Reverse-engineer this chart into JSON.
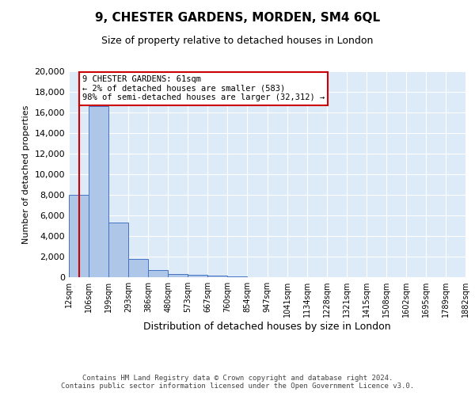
{
  "title": "9, CHESTER GARDENS, MORDEN, SM4 6QL",
  "subtitle": "Size of property relative to detached houses in London",
  "xlabel": "Distribution of detached houses by size in London",
  "ylabel": "Number of detached properties",
  "bin_labels": [
    "12sqm",
    "106sqm",
    "199sqm",
    "293sqm",
    "386sqm",
    "480sqm",
    "573sqm",
    "667sqm",
    "760sqm",
    "854sqm",
    "947sqm",
    "1041sqm",
    "1134sqm",
    "1228sqm",
    "1321sqm",
    "1415sqm",
    "1508sqm",
    "1602sqm",
    "1695sqm",
    "1789sqm",
    "1882sqm"
  ],
  "bar_heights": [
    8000,
    16600,
    5300,
    1750,
    700,
    300,
    200,
    150,
    100,
    0,
    0,
    0,
    0,
    0,
    0,
    0,
    0,
    0,
    0,
    0
  ],
  "bar_color": "#aec6e8",
  "bar_edge_color": "#4472c4",
  "background_color": "#ddeaf8",
  "ylim": [
    0,
    20000
  ],
  "yticks": [
    0,
    2000,
    4000,
    6000,
    8000,
    10000,
    12000,
    14000,
    16000,
    18000,
    20000
  ],
  "property_line_color": "#cc0000",
  "annotation_text": "9 CHESTER GARDENS: 61sqm\n← 2% of detached houses are smaller (583)\n98% of semi-detached houses are larger (32,312) →",
  "annotation_box_color": "#cc0000",
  "footer_line1": "Contains HM Land Registry data © Crown copyright and database right 2024.",
  "footer_line2": "Contains public sector information licensed under the Open Government Licence v3.0."
}
